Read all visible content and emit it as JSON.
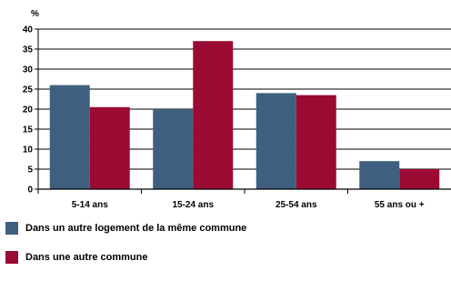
{
  "chart_data": {
    "type": "bar",
    "y_unit_label": "%",
    "categories": [
      "5-14 ans",
      "15-24 ans",
      "25-54 ans",
      "55 ans ou +"
    ],
    "series": [
      {
        "name": "Dans un autre logement de la même commune",
        "color": "#3f5f7f",
        "values": [
          26,
          20,
          24,
          7
        ]
      },
      {
        "name": "Dans une autre commune",
        "color": "#9b0a32",
        "values": [
          20.5,
          37,
          23.5,
          5
        ]
      }
    ],
    "yticks": [
      "0",
      "5",
      "10",
      "15",
      "20",
      "25",
      "30",
      "35",
      "40"
    ],
    "ylim": [
      0,
      40
    ],
    "grid": true,
    "legend_position": "bottom"
  }
}
